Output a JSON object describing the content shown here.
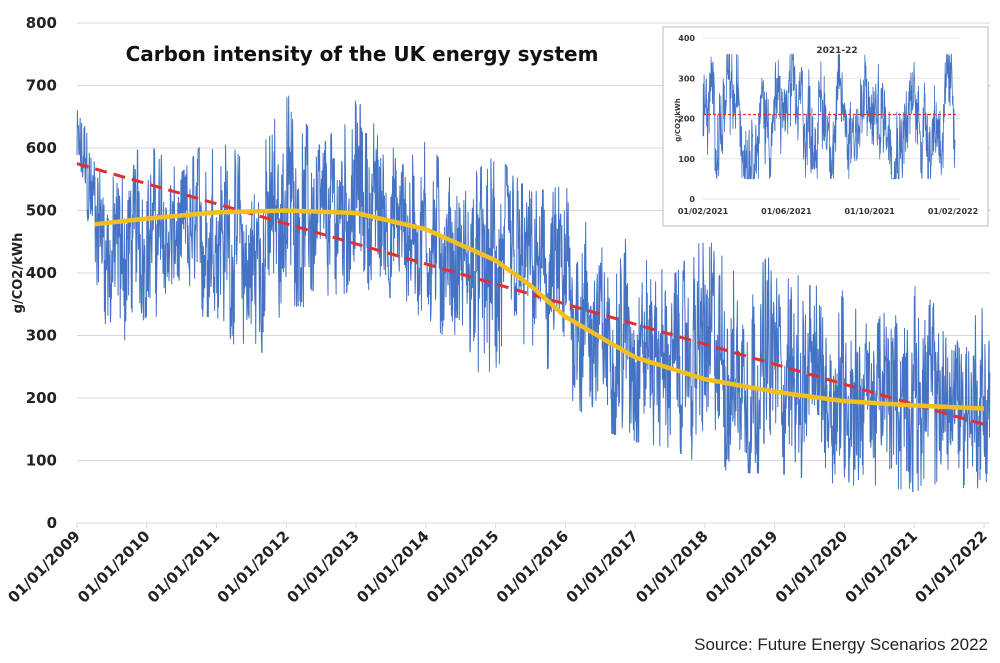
{
  "colors": {
    "series": "#4472C4",
    "trend": "#E03030",
    "smooth": "#F2C01E",
    "grid": "#D9D9D9"
  },
  "source": "Source: Future Energy Scenarios 2022",
  "chart_data": [
    {
      "type": "line",
      "title": "Carbon intensity of the UK energy system",
      "ylabel": "g/CO2/kWh",
      "xlabel": "",
      "ylim": [
        0,
        800
      ],
      "yticks": [
        "0",
        "100",
        "200",
        "300",
        "400",
        "500",
        "600",
        "700",
        "800"
      ],
      "xlim": [
        "2009-01-01",
        "2022-02-01"
      ],
      "xticks": [
        "01/01/2009",
        "01/01/2010",
        "01/01/2011",
        "01/01/2012",
        "01/01/2013",
        "01/01/2014",
        "01/01/2015",
        "01/01/2016",
        "01/01/2017",
        "01/01/2018",
        "01/01/2019",
        "01/01/2020",
        "01/01/2021",
        "01/01/2022"
      ],
      "grid": true,
      "series_range": {
        "dates": [
          "2009-01",
          "2009-07",
          "2010-01",
          "2010-07",
          "2011-01",
          "2011-07",
          "2012-01",
          "2012-07",
          "2013-01",
          "2013-07",
          "2014-01",
          "2014-07",
          "2015-01",
          "2015-07",
          "2016-01",
          "2016-07",
          "2017-01",
          "2017-07",
          "2018-01",
          "2018-07",
          "2019-01",
          "2019-07",
          "2020-01",
          "2020-07",
          "2021-01",
          "2021-07",
          "2022-01"
        ],
        "high": [
          670,
          560,
          610,
          560,
          640,
          560,
          690,
          600,
          680,
          600,
          610,
          540,
          590,
          530,
          540,
          440,
          460,
          390,
          460,
          400,
          430,
          380,
          380,
          330,
          380,
          330,
          345
        ],
        "low": [
          530,
          270,
          330,
          330,
          330,
          240,
          350,
          340,
          380,
          360,
          320,
          280,
          200,
          280,
          200,
          150,
          130,
          120,
          90,
          80,
          80,
          70,
          60,
          60,
          50,
          60,
          50
        ]
      },
      "trend_line": {
        "dates": [
          "2009-01-01",
          "2022-02-01"
        ],
        "values": [
          575,
          155
        ]
      },
      "smoothed": {
        "dates": [
          "2009-04",
          "2010-01",
          "2011-01",
          "2012-01",
          "2013-01",
          "2014-01",
          "2015-01",
          "2015-07",
          "2016-01",
          "2017-01",
          "2018-01",
          "2019-01",
          "2020-01",
          "2021-01",
          "2022-01"
        ],
        "values": [
          478,
          487,
          497,
          500,
          496,
          470,
          420,
          380,
          330,
          265,
          230,
          210,
          195,
          188,
          183
        ]
      }
    },
    {
      "type": "line",
      "title": "2021-22",
      "ylabel": "g/CO2/kWh",
      "ylim": [
        0,
        400
      ],
      "yticks": [
        "0",
        "100",
        "200",
        "300",
        "400"
      ],
      "xticks": [
        "01/02/2021",
        "01/06/2021",
        "01/10/2021",
        "01/02/2022"
      ],
      "series_range": {
        "low": 50,
        "high": 360
      },
      "mean_line": 210
    }
  ]
}
